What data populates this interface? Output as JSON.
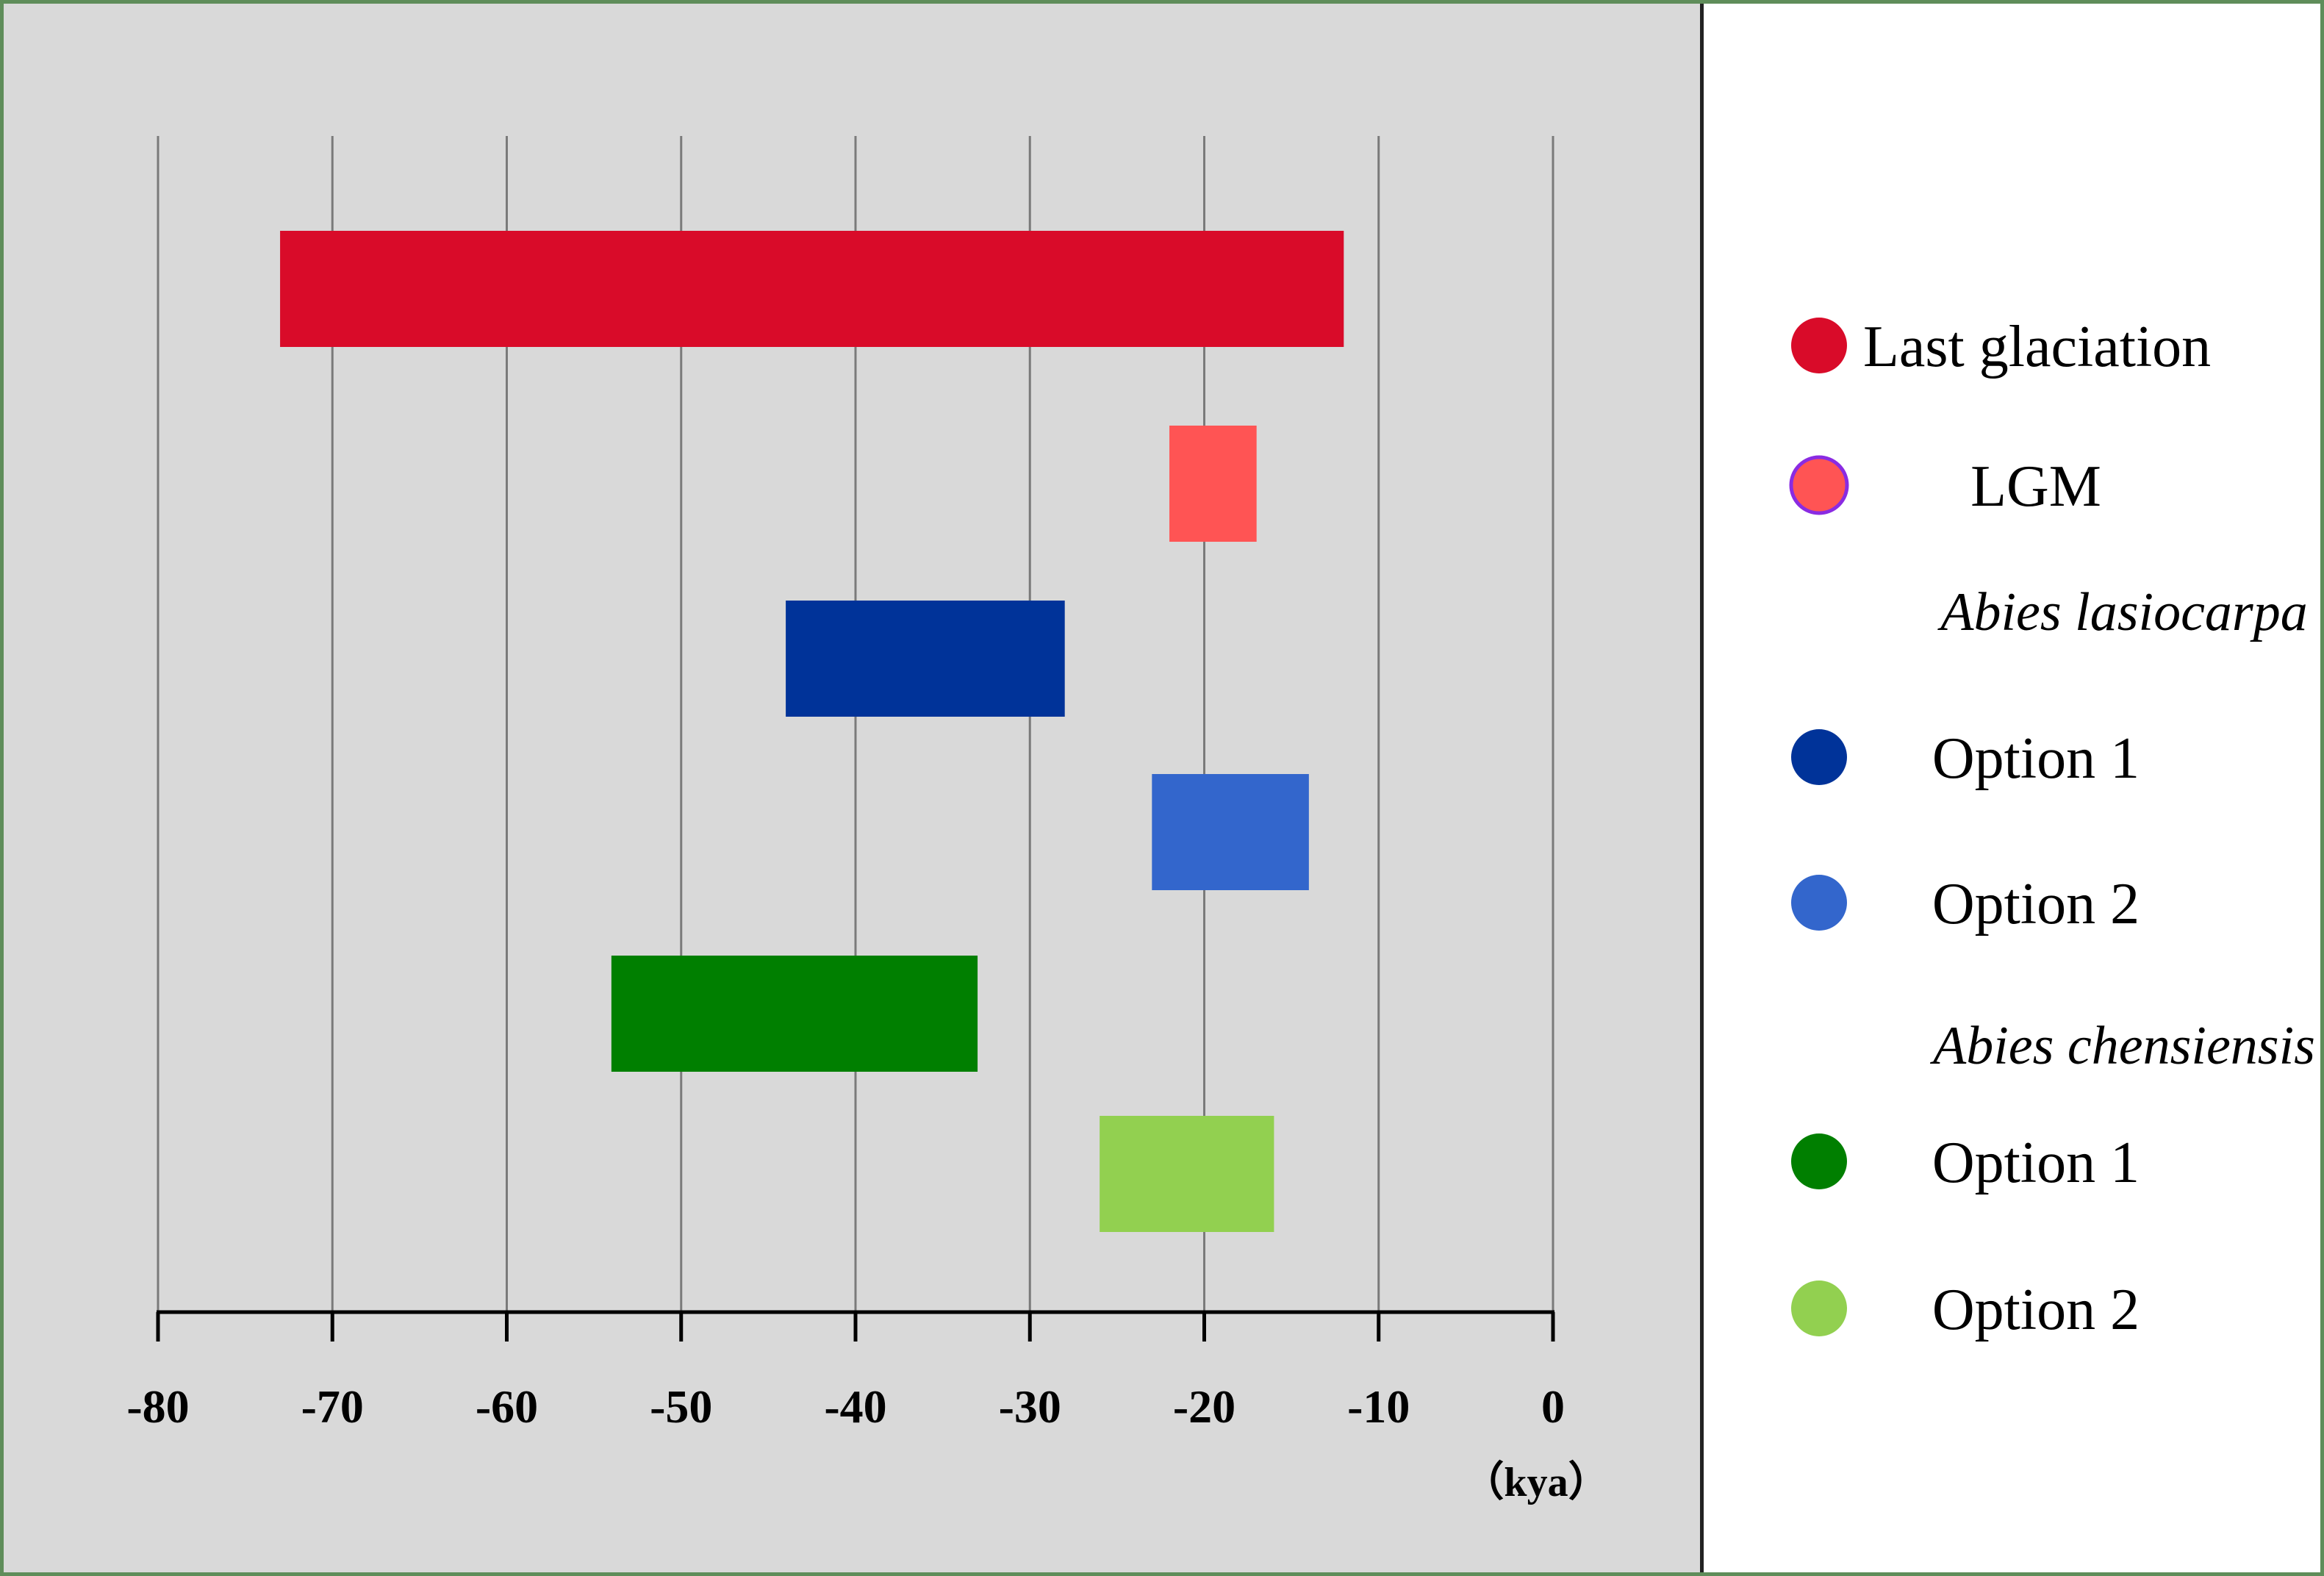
{
  "chart_data": {
    "type": "bar",
    "orientation": "horizontal",
    "title": "",
    "xlabel": "",
    "ylabel": "",
    "unit_label": "（kya）",
    "xlim": [
      -80,
      0
    ],
    "xticks": [
      -80,
      -70,
      -60,
      -50,
      -40,
      -30,
      -20,
      -10,
      0
    ],
    "grid": "vertical",
    "legend_position": "right",
    "bars": [
      {
        "name": "Last glaciation",
        "start": -73,
        "end": -12,
        "color": "#d90b29"
      },
      {
        "name": "LGM",
        "start": -22,
        "end": -17,
        "color": "#ff5454"
      },
      {
        "name": "Option 1",
        "group": "Abies lasiocarpa",
        "start": -44,
        "end": -28,
        "color": "#003399"
      },
      {
        "name": "Option 2",
        "group": "Abies lasiocarpa",
        "start": -23,
        "end": -14,
        "color": "#3366cc"
      },
      {
        "name": "Option 1",
        "group": "Abies chensiensis",
        "start": -54,
        "end": -33,
        "color": "#007f00"
      },
      {
        "name": "Option 2",
        "group": "Abies chensiensis",
        "start": -26,
        "end": -16,
        "color": "#92d050"
      }
    ]
  },
  "legend": {
    "items": [
      {
        "kind": "entry",
        "label": "Last glaciation",
        "color": "#d90b29"
      },
      {
        "kind": "entry",
        "label": "LGM",
        "color": "#ff5454",
        "outline": "#8a2be2"
      },
      {
        "kind": "heading",
        "label": "Abies lasiocarpa"
      },
      {
        "kind": "entry",
        "label": "Option 1",
        "color": "#003399"
      },
      {
        "kind": "entry",
        "label": "Option 2",
        "color": "#3366cc"
      },
      {
        "kind": "heading",
        "label": "Abies chensiensis"
      },
      {
        "kind": "entry",
        "label": "Option 1",
        "color": "#007f00"
      },
      {
        "kind": "entry",
        "label": "Option 2",
        "color": "#92d050"
      }
    ]
  }
}
